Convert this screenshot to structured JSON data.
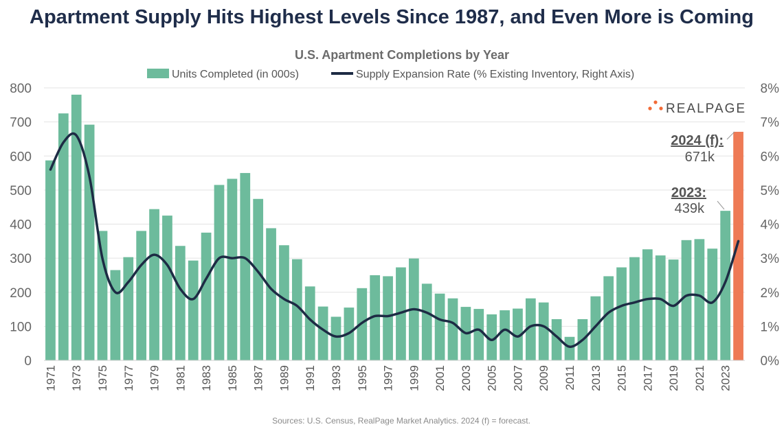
{
  "headline": "Apartment Supply Hits Highest Levels Since 1987, and Even More is Coming",
  "source": "Sources: U.S. Census, RealPage Market Analytics. 2024 (f) = forecast.",
  "logo": {
    "text": "REALPAGE",
    "icon": "realpage-dots-logo-icon"
  },
  "colors": {
    "bar": "#6dbb9c",
    "forecast_bar": "#ee7a55",
    "line": "#1d2b44",
    "grid": "#e3e3e3",
    "headline": "#1f2d4a"
  },
  "chart_data": {
    "type": "bar",
    "title": "U.S. Apartment Completions by Year",
    "legend": [
      {
        "name": "Units Completed (in 000s)",
        "kind": "bar"
      },
      {
        "name": "Supply Expansion Rate (% Existing Inventory, Right Axis)",
        "kind": "line"
      }
    ],
    "legend_position": "top-center",
    "grid": true,
    "categories": [
      "1971",
      "1972",
      "1973",
      "1974",
      "1975",
      "1976",
      "1977",
      "1978",
      "1979",
      "1980",
      "1981",
      "1982",
      "1983",
      "1984",
      "1985",
      "1986",
      "1987",
      "1988",
      "1989",
      "1990",
      "1991",
      "1992",
      "1993",
      "1994",
      "1995",
      "1996",
      "1997",
      "1998",
      "1999",
      "2000",
      "2001",
      "2002",
      "2003",
      "2004",
      "2005",
      "2006",
      "2007",
      "2008",
      "2009",
      "2010",
      "2011",
      "2012",
      "2013",
      "2014",
      "2015",
      "2016",
      "2017",
      "2018",
      "2019",
      "2020",
      "2021",
      "2022",
      "2023",
      "2024"
    ],
    "x_tick_labels": [
      "1971",
      "1973",
      "1975",
      "1977",
      "1979",
      "1981",
      "1983",
      "1985",
      "1987",
      "1989",
      "1991",
      "1993",
      "1995",
      "1997",
      "1999",
      "2001",
      "2003",
      "2005",
      "2007",
      "2009",
      "2011",
      "2013",
      "2015",
      "2017",
      "2019",
      "2021",
      "2023"
    ],
    "series": [
      {
        "name": "Units Completed (in 000s)",
        "axis": "left",
        "values": [
          587,
          725,
          780,
          692,
          380,
          265,
          303,
          380,
          444,
          425,
          336,
          293,
          375,
          515,
          533,
          550,
          474,
          388,
          338,
          297,
          217,
          158,
          128,
          155,
          212,
          250,
          247,
          273,
          299,
          225,
          196,
          182,
          157,
          151,
          135,
          147,
          152,
          182,
          170,
          121,
          69,
          121,
          188,
          247,
          273,
          303,
          326,
          308,
          296,
          353,
          356,
          328,
          439,
          671
        ],
        "forecast_index": 53
      },
      {
        "name": "Supply Expansion Rate (% Existing Inventory, Right Axis)",
        "axis": "right",
        "type": "line",
        "values": [
          5.6,
          6.4,
          6.6,
          5.4,
          3.0,
          2.0,
          2.3,
          2.8,
          3.1,
          2.8,
          2.1,
          1.8,
          2.4,
          3.0,
          3.0,
          3.0,
          2.6,
          2.1,
          1.8,
          1.6,
          1.2,
          0.9,
          0.7,
          0.8,
          1.1,
          1.3,
          1.3,
          1.4,
          1.5,
          1.4,
          1.2,
          1.1,
          0.8,
          0.9,
          0.6,
          0.9,
          0.7,
          1.0,
          1.0,
          0.7,
          0.4,
          0.6,
          1.0,
          1.4,
          1.6,
          1.7,
          1.8,
          1.8,
          1.6,
          1.9,
          1.9,
          1.7,
          2.3,
          3.5
        ]
      }
    ],
    "y_left": {
      "min": 0,
      "max": 800,
      "step": 100,
      "ticks": [
        "0",
        "100",
        "200",
        "300",
        "400",
        "500",
        "600",
        "700",
        "800"
      ]
    },
    "y_right": {
      "min": 0,
      "max": 8,
      "step": 1,
      "ticks": [
        "0%",
        "1%",
        "2%",
        "3%",
        "4%",
        "5%",
        "6%",
        "7%",
        "8%"
      ]
    },
    "annotations": [
      {
        "year": "2024 (f):",
        "value": "671k",
        "index": 53
      },
      {
        "year": "2023:",
        "value": "439k",
        "index": 52
      }
    ]
  }
}
